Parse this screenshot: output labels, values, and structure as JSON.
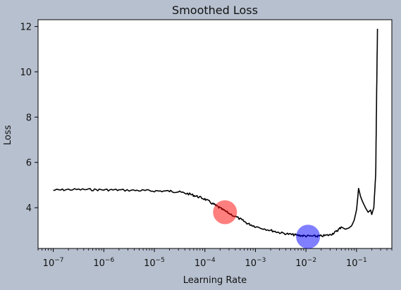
{
  "chart_data": {
    "type": "line",
    "title": "Smoothed Loss",
    "xlabel": "Learning Rate",
    "ylabel": "Loss",
    "xscale": "log",
    "xlim": [
      5e-08,
      0.5
    ],
    "ylim": [
      2.2,
      12.3
    ],
    "grid": false,
    "legend": "none",
    "xticks": [
      {
        "value": 1e-07,
        "base": "10",
        "exp": "−7"
      },
      {
        "value": 1e-06,
        "base": "10",
        "exp": "−6"
      },
      {
        "value": 1e-05,
        "base": "10",
        "exp": "−5"
      },
      {
        "value": 0.0001,
        "base": "10",
        "exp": "−4"
      },
      {
        "value": 0.001,
        "base": "10",
        "exp": "−3"
      },
      {
        "value": 0.01,
        "base": "10",
        "exp": "−2"
      },
      {
        "value": 0.1,
        "base": "10",
        "exp": "−1"
      }
    ],
    "yticks": [
      4,
      6,
      8,
      10,
      12
    ],
    "series": [
      {
        "color": "#000000",
        "x": [
          1e-07,
          2e-07,
          5e-07,
          1e-06,
          2e-06,
          5e-06,
          1e-05,
          2e-05,
          3e-05,
          5e-05,
          7e-05,
          0.0001,
          0.00015,
          0.0002,
          0.0003,
          0.0005,
          0.0007,
          0.001,
          0.002,
          0.003,
          0.005,
          0.007,
          0.01,
          0.015,
          0.02,
          0.03,
          0.04,
          0.05,
          0.06,
          0.07,
          0.08,
          0.09,
          0.1,
          0.11,
          0.12,
          0.13,
          0.15,
          0.17,
          0.19,
          0.2,
          0.22,
          0.24,
          0.25,
          0.26
        ],
        "y": [
          4.77,
          4.8,
          4.8,
          4.79,
          4.78,
          4.76,
          4.74,
          4.73,
          4.7,
          4.6,
          4.5,
          4.38,
          4.15,
          3.98,
          3.75,
          3.5,
          3.3,
          3.17,
          3.0,
          2.9,
          2.82,
          2.78,
          2.75,
          2.74,
          2.75,
          2.8,
          2.95,
          3.15,
          3.05,
          3.1,
          3.2,
          3.45,
          3.9,
          4.85,
          4.5,
          4.3,
          4.0,
          3.8,
          3.9,
          3.7,
          4.0,
          5.5,
          9.0,
          11.9
        ]
      }
    ],
    "markers": [
      {
        "x": 0.00025,
        "y": 3.8,
        "color": "#ff0000",
        "alpha": 0.5
      },
      {
        "x": 0.011,
        "y": 2.72,
        "color": "#0000ff",
        "alpha": 0.5
      }
    ]
  }
}
